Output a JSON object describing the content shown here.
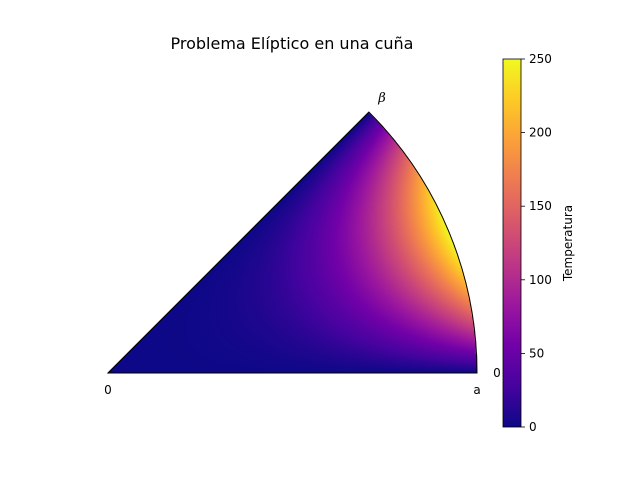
{
  "chart_data": {
    "type": "heatmap",
    "title": "Problema Elíptico en una cuña",
    "domain": "wedge (circular sector)",
    "angle_label": "β",
    "radial_labels": [
      "0",
      "a"
    ],
    "edge_value_label": "0",
    "colormap": "plasma",
    "colorbar": {
      "label": "Temperatura",
      "min": 0,
      "max": 250,
      "ticks": [
        0,
        50,
        100,
        150,
        200,
        250
      ],
      "tick_labels": [
        "0",
        "50",
        "100",
        "150",
        "200",
        "250"
      ]
    },
    "field": {
      "description": "temperature highest on outer arc near middle of arc, zero on straight edges",
      "peak_value": 250,
      "boundary_value_straight_edges": 0
    }
  },
  "colors": {
    "plasma": [
      "#0d0887",
      "#46039f",
      "#7201a8",
      "#9c179e",
      "#bd3786",
      "#d8576b",
      "#ed7953",
      "#fb9f3a",
      "#fdca26",
      "#f0f921"
    ]
  }
}
